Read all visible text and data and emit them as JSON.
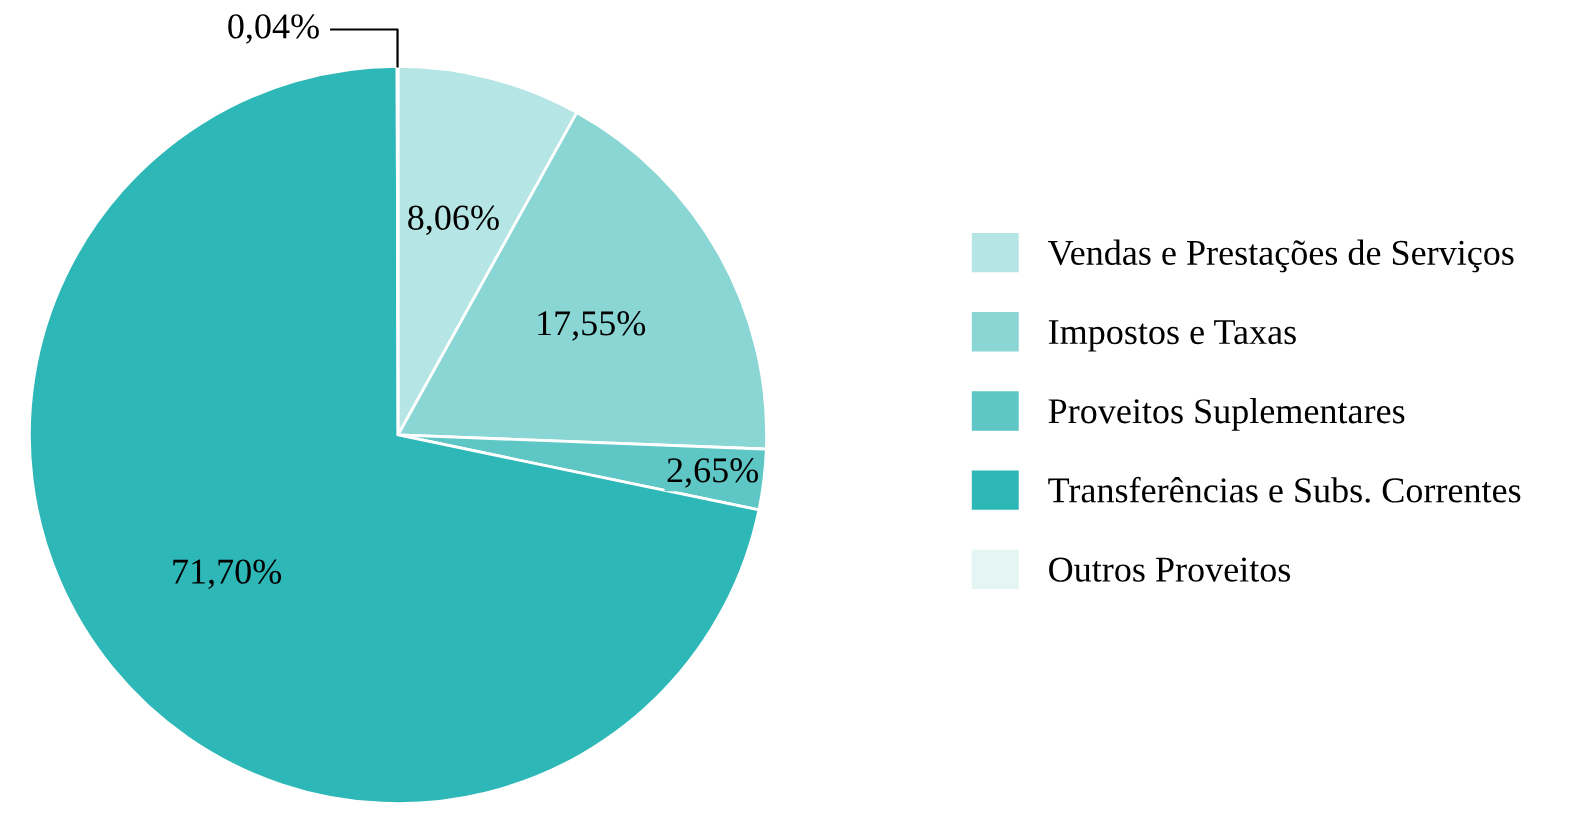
{
  "chart_data": {
    "type": "pie",
    "categories": [
      "Vendas e Prestações de Serviços",
      "Impostos e Taxas",
      "Proveitos Suplementares",
      "Transferências e Subs. Correntes",
      "Outros Proveitos"
    ],
    "values": [
      8.06,
      17.55,
      2.65,
      71.7,
      0.04
    ],
    "colors": [
      "#b5e5e4",
      "#8ad6d5",
      "#5ec7c5",
      "#2db7b7",
      "#e5f5f4"
    ],
    "value_labels": [
      "8,06%",
      "17,55%",
      "2,65%",
      "71,70%",
      "0,04%"
    ],
    "legend": "right"
  }
}
